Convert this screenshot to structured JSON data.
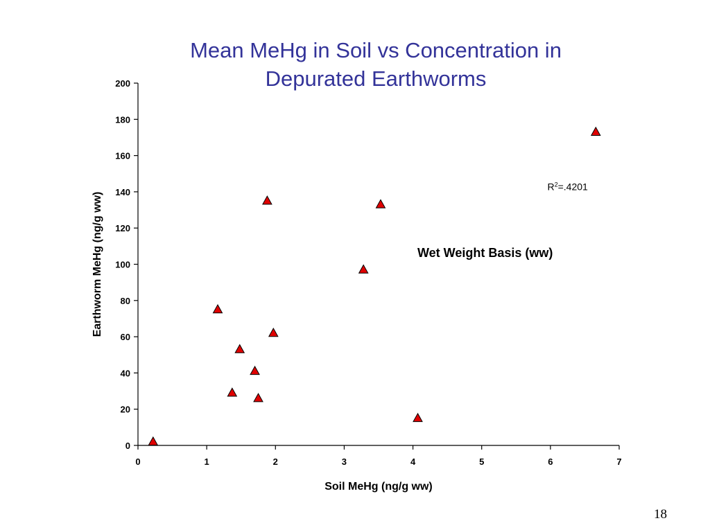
{
  "slide": {
    "title_line1": "Mean MeHg in Soil vs Concentration in",
    "title_line2": "Depurated Earthworms",
    "page_number": "18"
  },
  "colors": {
    "title": "#333399",
    "marker_fill": "#e00000",
    "marker_stroke": "#000000",
    "axis": "#000000"
  },
  "chart_data": {
    "type": "scatter",
    "title": "Mean MeHg in Soil vs Concentration in Depurated Earthworms",
    "xlabel": "Soil MeHg (ng/g ww)",
    "ylabel": "Earthworm MeHg (ng/g ww)",
    "xlim": [
      0,
      7
    ],
    "ylim": [
      0,
      200
    ],
    "xticks": [
      0,
      1,
      2,
      3,
      4,
      5,
      6,
      7
    ],
    "yticks": [
      0,
      20,
      40,
      60,
      80,
      100,
      120,
      140,
      160,
      180,
      200
    ],
    "grid": false,
    "legend": "none",
    "marker": "triangle",
    "series": [
      {
        "points": [
          {
            "x": 0.22,
            "y": 2
          },
          {
            "x": 1.16,
            "y": 75
          },
          {
            "x": 1.37,
            "y": 29
          },
          {
            "x": 1.48,
            "y": 53
          },
          {
            "x": 1.7,
            "y": 41
          },
          {
            "x": 1.75,
            "y": 26
          },
          {
            "x": 1.88,
            "y": 135
          },
          {
            "x": 1.97,
            "y": 62
          },
          {
            "x": 3.28,
            "y": 97
          },
          {
            "x": 3.53,
            "y": 133
          },
          {
            "x": 4.07,
            "y": 15
          },
          {
            "x": 6.66,
            "y": 173
          }
        ]
      }
    ],
    "annotations": [
      {
        "id": "r2",
        "base": "R",
        "sup": "2",
        "rest": "=.4201",
        "x": 6.25,
        "y": 141
      },
      {
        "id": "basis",
        "text": "Wet Weight Basis (ww)",
        "x": 5.05,
        "y": 104
      }
    ]
  }
}
